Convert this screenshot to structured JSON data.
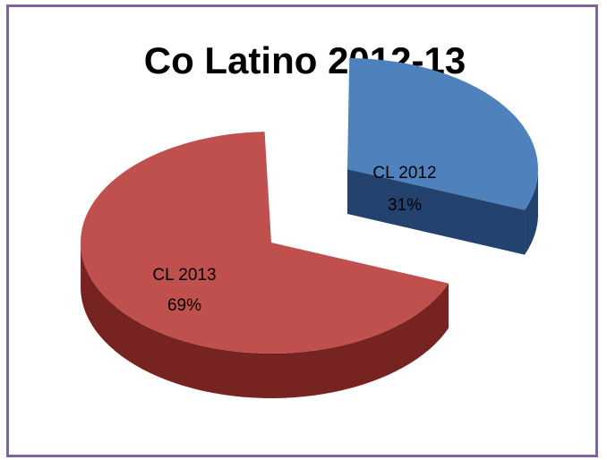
{
  "chart_data": {
    "type": "pie",
    "style": "3d-exploded",
    "title": "Co Latino 2012-13",
    "slices": [
      {
        "label": "CL 2012",
        "value": 31,
        "display": "31%",
        "color": "#4f81bd",
        "side_color": "#23426d"
      },
      {
        "label": "CL 2013",
        "value": 69,
        "display": "69%",
        "color": "#c0504d",
        "side_color": "#772322"
      }
    ],
    "frame_color": "#8064a2"
  }
}
